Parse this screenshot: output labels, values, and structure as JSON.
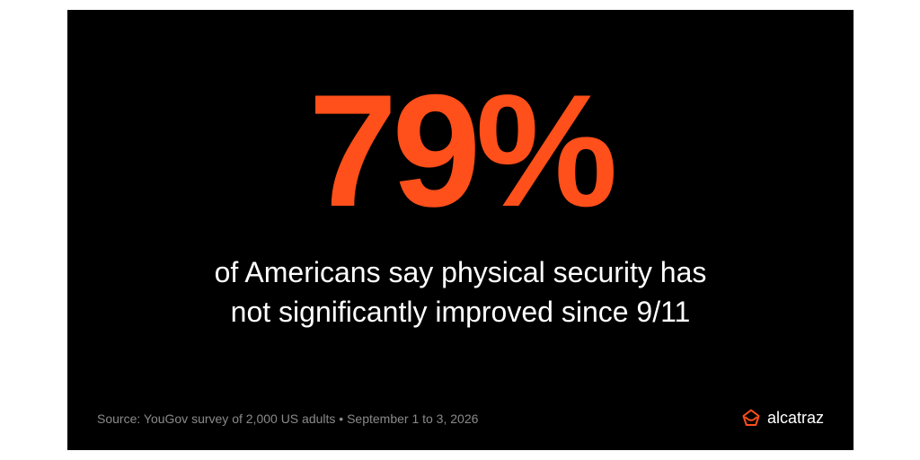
{
  "stat": {
    "value": "79%",
    "color": "#ff4f1a"
  },
  "headline": {
    "line1": "of Americans say physical security has",
    "line2": "not significantly improved since 9/11"
  },
  "footer": {
    "source": "Source: YouGov survey of 2,000 US adults • September 1 to 3, 2026",
    "brand_icon": "alcatraz-logo-icon",
    "brand_name": "alcatraz"
  },
  "colors": {
    "background": "#000000",
    "accent": "#ff4f1a",
    "text": "#ffffff",
    "muted": "#8a8a8a"
  }
}
